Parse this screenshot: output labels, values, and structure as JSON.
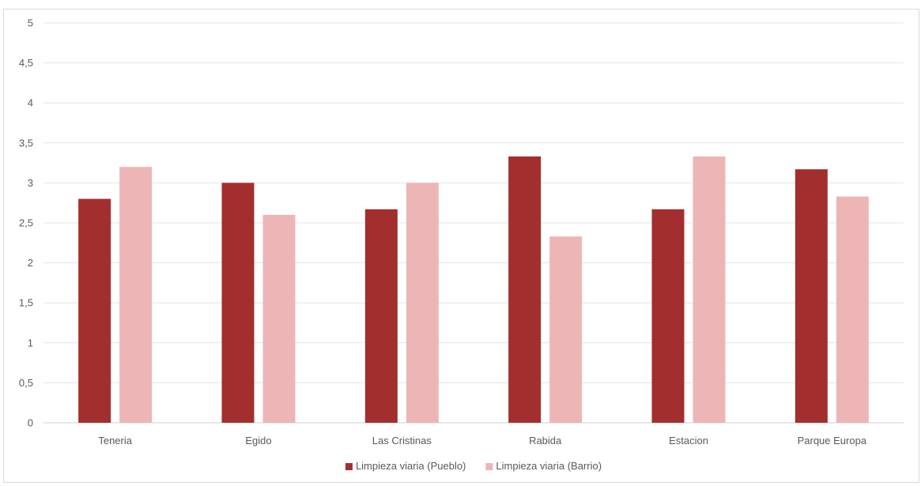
{
  "chart_data": {
    "type": "bar",
    "categories": [
      "Teneria",
      "Egido",
      "Las Cristinas",
      "Rabida",
      "Estacion",
      "Parque Europa"
    ],
    "series": [
      {
        "name": "Limpieza viaria (Pueblo)",
        "color": "#a32e2e",
        "values": [
          2.8,
          3.0,
          2.67,
          3.33,
          2.67,
          3.17
        ]
      },
      {
        "name": "Limpieza viaria (Barrio)",
        "color": "#edb6b6",
        "values": [
          3.2,
          2.6,
          3.0,
          2.33,
          3.33,
          2.83
        ]
      }
    ],
    "ylim": [
      0,
      5
    ],
    "yticks": [
      "0",
      "0,5",
      "1",
      "1,5",
      "2",
      "2,5",
      "3",
      "3,5",
      "4",
      "4,5",
      "5"
    ],
    "title": "",
    "xlabel": "",
    "ylabel": "",
    "grid": true,
    "legend_position": "bottom"
  }
}
